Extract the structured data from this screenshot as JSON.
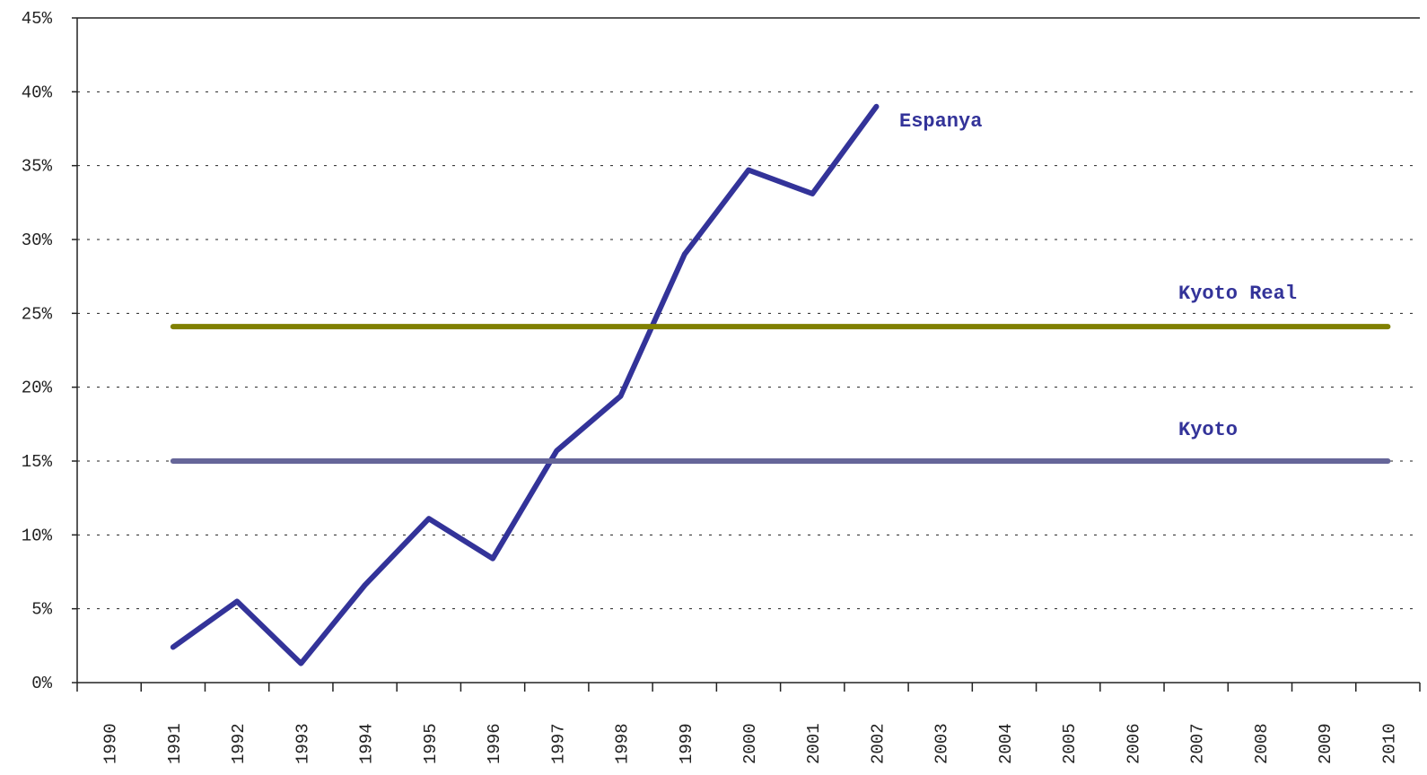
{
  "chart_data": {
    "type": "line",
    "categories": [
      "1990",
      "1991",
      "1992",
      "1993",
      "1994",
      "1995",
      "1996",
      "1997",
      "1998",
      "1999",
      "2000",
      "2001",
      "2002",
      "2003",
      "2004",
      "2005",
      "2006",
      "2007",
      "2008",
      "2009",
      "2010"
    ],
    "series": [
      {
        "name": "Espanya",
        "color": "#333399",
        "values": [
          null,
          2.4,
          5.5,
          1.3,
          6.6,
          11.1,
          8.4,
          15.7,
          19.4,
          29.0,
          34.7,
          33.1,
          39.0,
          null,
          null,
          null,
          null,
          null,
          null,
          null,
          null
        ]
      },
      {
        "name": "Kyoto Real",
        "color": "#808000",
        "values": [
          null,
          24.1,
          24.1,
          24.1,
          24.1,
          24.1,
          24.1,
          24.1,
          24.1,
          24.1,
          24.1,
          24.1,
          24.1,
          24.1,
          24.1,
          24.1,
          24.1,
          24.1,
          24.1,
          24.1,
          24.1
        ]
      },
      {
        "name": "Kyoto",
        "color": "#666699",
        "values": [
          null,
          15,
          15,
          15,
          15,
          15,
          15,
          15,
          15,
          15,
          15,
          15,
          15,
          15,
          15,
          15,
          15,
          15,
          15,
          15,
          15
        ]
      }
    ],
    "ylim": [
      0,
      45
    ],
    "yticks": [
      {
        "value": 0,
        "label": "0%"
      },
      {
        "value": 5,
        "label": "5%"
      },
      {
        "value": 10,
        "label": "10%"
      },
      {
        "value": 15,
        "label": "15%"
      },
      {
        "value": 20,
        "label": "20%"
      },
      {
        "value": 25,
        "label": "25%"
      },
      {
        "value": 30,
        "label": "30%"
      },
      {
        "value": 35,
        "label": "35%"
      },
      {
        "value": 40,
        "label": "40%"
      },
      {
        "value": 45,
        "label": "45%"
      }
    ],
    "grid": true
  }
}
